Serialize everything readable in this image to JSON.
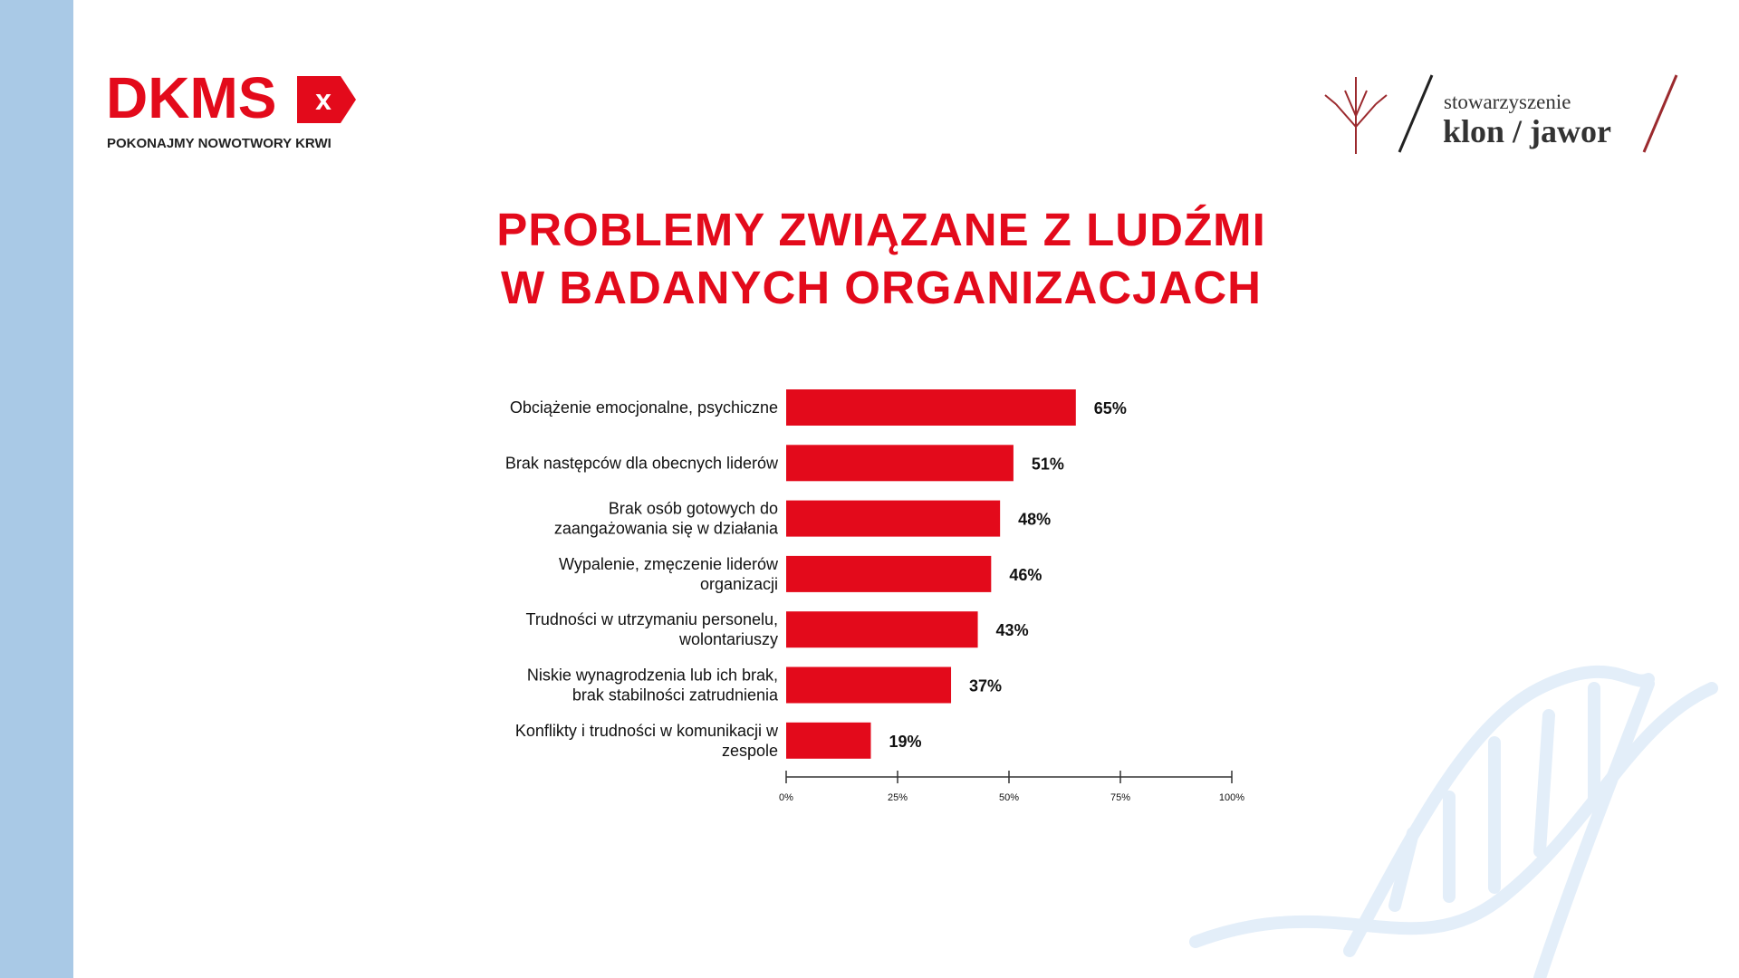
{
  "logos": {
    "dkms": "DKMS",
    "dkms_badge": "x",
    "dkms_tagline": "POKONAJMY NOWOTWORY KRWI",
    "klon_prefix": "stowarzyszenie",
    "klon_name": "klon / jawor"
  },
  "chart_data": {
    "type": "barh",
    "title": [
      "PROBLEMY ZWIĄZANE Z LUDŹMI",
      "W BADANYCH ORGANIZACJACH"
    ],
    "categories": [
      "Obciążenie emocjonalne, psychiczne",
      "Brak następców dla obecnych liderów",
      "Brak osób gotowych do\nzaangażowania się w działania",
      "Wypalenie, zmęczenie liderów\norganizacji",
      "Trudności w utrzymaniu personelu,\nwolontariuszy",
      "Niskie wynagrodzenia lub ich brak,\nbrak stabilności zatrudnienia",
      "Konflikty i trudności w komunikacji w\nzespole"
    ],
    "values": [
      65,
      51,
      48,
      46,
      43,
      37,
      19
    ],
    "value_labels": [
      "65%",
      "51%",
      "48%",
      "46%",
      "43%",
      "37%",
      "19%"
    ],
    "color": "#e30a1b",
    "xlim": [
      0,
      100
    ],
    "xticks": [
      {
        "value": 0,
        "label": "0%"
      },
      {
        "value": 25,
        "label": "25%"
      },
      {
        "value": 50,
        "label": "50%"
      },
      {
        "value": 75,
        "label": "75%"
      },
      {
        "value": 100,
        "label": "100%"
      }
    ]
  }
}
